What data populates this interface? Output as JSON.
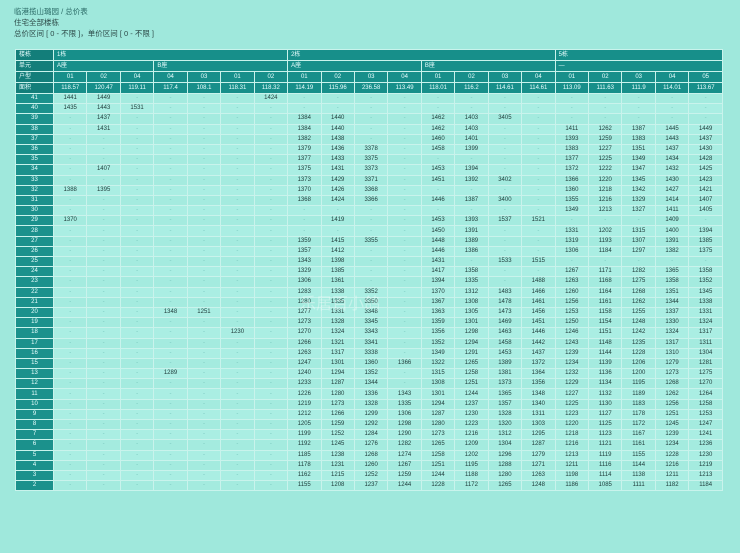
{
  "header": {
    "title": "临港揽山璐园 / 总价表",
    "scope": "住宅全部楼栋",
    "ranges": "总价区间 [ 0 - 不限 ]，单价区间 [ 0 - 不限 ]"
  },
  "watermark": "乐居百小鸽",
  "table": {
    "row_labels": {
      "building": "楼栋",
      "unit": "单元",
      "type": "户型",
      "area": "面积"
    },
    "buildings": [
      {
        "name": "1栋",
        "span": 7
      },
      {
        "name": "2栋",
        "span": 8
      },
      {
        "name": "5栋",
        "span": 5
      }
    ],
    "units": [
      {
        "name": "A座",
        "span": 3
      },
      {
        "name": "B座",
        "span": 4
      },
      {
        "name": "A座",
        "span": 4
      },
      {
        "name": "B座",
        "span": 4
      },
      {
        "name": "—",
        "span": 5
      }
    ],
    "types": [
      "01",
      "02",
      "04",
      "04",
      "03",
      "01",
      "02",
      "01",
      "02",
      "03",
      "04",
      "01",
      "02",
      "03",
      "04",
      "01",
      "02",
      "03",
      "04",
      "05"
    ],
    "areas": [
      "118.57",
      "120.47",
      "119.11",
      "117.4",
      "108.1",
      "118.31",
      "118.32",
      "114.19",
      "115.96",
      "236.58",
      "113.49",
      "118.01",
      "116.2",
      "114.61",
      "114.61",
      "113.09",
      "111.63",
      "111.9",
      "114.01",
      "113.67"
    ],
    "floors": [
      {
        "floor": "41",
        "prices": [
          "1441",
          "1449",
          "",
          "",
          "",
          "",
          "1424",
          "",
          "",
          "",
          "",
          "",
          "",
          "",
          "",
          "",
          "",
          "",
          "",
          ""
        ]
      },
      {
        "floor": "40",
        "prices": [
          "1435",
          "1443",
          "1531",
          "",
          "",
          "",
          "",
          "",
          "",
          "",
          "",
          "",
          "",
          "",
          "",
          "",
          "",
          "",
          "",
          ""
        ]
      },
      {
        "floor": "39",
        "prices": [
          "",
          "1437",
          "",
          "",
          "",
          "",
          "",
          "1384",
          "1440",
          "",
          "",
          "1462",
          "1403",
          "3405",
          "",
          "",
          "",
          "",
          "",
          ""
        ]
      },
      {
        "floor": "38",
        "prices": [
          "",
          "1431",
          "",
          "",
          "",
          "",
          "",
          "1384",
          "1440",
          "",
          "",
          "1462",
          "1403",
          "",
          "",
          "1411",
          "1262",
          "1387",
          "1445",
          "1449"
        ]
      },
      {
        "floor": "37",
        "prices": [
          "",
          "",
          "",
          "",
          "",
          "",
          "",
          "1382",
          "1438",
          "",
          "",
          "1460",
          "1401",
          "",
          "",
          "1393",
          "1259",
          "1383",
          "1443",
          "1437"
        ]
      },
      {
        "floor": "36",
        "prices": [
          "",
          "",
          "",
          "",
          "",
          "",
          "",
          "1379",
          "1436",
          "3378",
          "",
          "1458",
          "1399",
          "",
          "",
          "1383",
          "1227",
          "1351",
          "1437",
          "1430"
        ]
      },
      {
        "floor": "35",
        "prices": [
          "",
          "",
          "",
          "",
          "",
          "",
          "",
          "1377",
          "1433",
          "3375",
          "",
          "",
          "",
          "",
          "",
          "1377",
          "1225",
          "1349",
          "1434",
          "1428"
        ]
      },
      {
        "floor": "34",
        "prices": [
          "",
          "1407",
          "",
          "",
          "",
          "",
          "",
          "1375",
          "1431",
          "3373",
          "",
          "1453",
          "1394",
          "",
          "",
          "1372",
          "1222",
          "1347",
          "1432",
          "1425"
        ]
      },
      {
        "floor": "33",
        "prices": [
          "",
          "",
          "",
          "",
          "",
          "",
          "",
          "1373",
          "1429",
          "3371",
          "",
          "1451",
          "1392",
          "3402",
          "",
          "1366",
          "1220",
          "1345",
          "1430",
          "1423"
        ]
      },
      {
        "floor": "32",
        "prices": [
          "1388",
          "1395",
          "",
          "",
          "",
          "",
          "",
          "1370",
          "1426",
          "3368",
          "",
          "",
          "",
          "",
          "",
          "1360",
          "1218",
          "1342",
          "1427",
          "1421"
        ]
      },
      {
        "floor": "31",
        "prices": [
          "",
          "",
          "",
          "",
          "",
          "",
          "",
          "1368",
          "1424",
          "3366",
          "",
          "1446",
          "1387",
          "3400",
          "",
          "1355",
          "1216",
          "1329",
          "1414",
          "1407"
        ]
      },
      {
        "floor": "30",
        "prices": [
          "",
          "",
          "",
          "",
          "",
          "",
          "",
          "",
          "",
          "",
          "",
          "",
          "",
          "",
          "",
          "1349",
          "1213",
          "1327",
          "1411",
          "1405"
        ]
      },
      {
        "floor": "29",
        "prices": [
          "1370",
          "",
          "",
          "",
          "",
          "",
          "",
          "",
          "1419",
          "",
          "",
          "1453",
          "1393",
          "1537",
          "1521",
          "",
          "",
          "",
          "1409",
          ""
        ]
      },
      {
        "floor": "28",
        "prices": [
          "",
          "",
          "",
          "",
          "",
          "",
          "",
          "",
          "",
          "",
          "",
          "1450",
          "1391",
          "",
          "",
          "1331",
          "1202",
          "1315",
          "1400",
          "1394"
        ]
      },
      {
        "floor": "27",
        "prices": [
          "",
          "",
          "",
          "",
          "",
          "",
          "",
          "1359",
          "1415",
          "3355",
          "",
          "1448",
          "1389",
          "",
          "",
          "1319",
          "1193",
          "1307",
          "1391",
          "1385"
        ]
      },
      {
        "floor": "26",
        "prices": [
          "",
          "",
          "",
          "",
          "",
          "",
          "",
          "1357",
          "1412",
          "",
          "",
          "1446",
          "1386",
          "",
          "",
          "1306",
          "1184",
          "1297",
          "1382",
          "1375"
        ]
      },
      {
        "floor": "25",
        "prices": [
          "",
          "",
          "",
          "",
          "",
          "",
          "",
          "1343",
          "1398",
          "",
          "",
          "1431",
          "",
          "1533",
          "1515",
          "",
          "",
          "",
          "",
          ""
        ]
      },
      {
        "floor": "24",
        "prices": [
          "",
          "",
          "",
          "",
          "",
          "",
          "",
          "1329",
          "1385",
          "",
          "",
          "1417",
          "1358",
          "",
          "",
          "1267",
          "1171",
          "1282",
          "1365",
          "1358"
        ]
      },
      {
        "floor": "23",
        "prices": [
          "",
          "",
          "",
          "",
          "",
          "",
          "",
          "1306",
          "1361",
          "",
          "",
          "1394",
          "1335",
          "",
          "1488",
          "1263",
          "1168",
          "1275",
          "1358",
          "1352"
        ]
      },
      {
        "floor": "22",
        "prices": [
          "",
          "",
          "",
          "",
          "",
          "",
          "",
          "1283",
          "1338",
          "3352",
          "",
          "1370",
          "1312",
          "1483",
          "1466",
          "1260",
          "1164",
          "1268",
          "1351",
          "1345"
        ]
      },
      {
        "floor": "21",
        "prices": [
          "",
          "",
          "",
          "",
          "",
          "",
          "",
          "1280",
          "1335",
          "3350",
          "",
          "1367",
          "1308",
          "1478",
          "1461",
          "1256",
          "1161",
          "1262",
          "1344",
          "1338"
        ]
      },
      {
        "floor": "20",
        "prices": [
          "",
          "",
          "",
          "1348",
          "1251",
          "",
          "",
          "1277",
          "1331",
          "3348",
          "",
          "1363",
          "1305",
          "1473",
          "1456",
          "1253",
          "1158",
          "1255",
          "1337",
          "1331"
        ]
      },
      {
        "floor": "19",
        "prices": [
          "",
          "",
          "",
          "",
          "",
          "",
          "",
          "1273",
          "1328",
          "3345",
          "",
          "1359",
          "1301",
          "1469",
          "1451",
          "1250",
          "1154",
          "1248",
          "1330",
          "1324"
        ]
      },
      {
        "floor": "18",
        "prices": [
          "",
          "",
          "",
          "",
          "",
          "1230",
          "",
          "1270",
          "1324",
          "3343",
          "",
          "1356",
          "1298",
          "1463",
          "1446",
          "1246",
          "1151",
          "1242",
          "1324",
          "1317"
        ]
      },
      {
        "floor": "17",
        "prices": [
          "",
          "",
          "",
          "",
          "",
          "",
          "",
          "1266",
          "1321",
          "3341",
          "",
          "1352",
          "1294",
          "1458",
          "1442",
          "1243",
          "1148",
          "1235",
          "1317",
          "1311"
        ]
      },
      {
        "floor": "16",
        "prices": [
          "",
          "",
          "",
          "",
          "",
          "",
          "",
          "1263",
          "1317",
          "3338",
          "",
          "1349",
          "1291",
          "1453",
          "1437",
          "1239",
          "1144",
          "1228",
          "1310",
          "1304"
        ]
      },
      {
        "floor": "15",
        "prices": [
          "",
          "",
          "",
          "",
          "",
          "",
          "",
          "1247",
          "1301",
          "1360",
          "1366",
          "1322",
          "1265",
          "1389",
          "1372",
          "1234",
          "1139",
          "1206",
          "1279",
          "1281"
        ]
      },
      {
        "floor": "13",
        "prices": [
          "",
          "",
          "",
          "1289",
          "",
          "",
          "",
          "1240",
          "1294",
          "1352",
          "",
          "1315",
          "1258",
          "1381",
          "1364",
          "1232",
          "1136",
          "1200",
          "1273",
          "1275"
        ]
      },
      {
        "floor": "12",
        "prices": [
          "",
          "",
          "",
          "",
          "",
          "",
          "",
          "1233",
          "1287",
          "1344",
          "",
          "1308",
          "1251",
          "1373",
          "1356",
          "1229",
          "1134",
          "1195",
          "1268",
          "1270"
        ]
      },
      {
        "floor": "11",
        "prices": [
          "",
          "",
          "",
          "",
          "",
          "",
          "",
          "1226",
          "1280",
          "1336",
          "1343",
          "1301",
          "1244",
          "1365",
          "1348",
          "1227",
          "1132",
          "1189",
          "1262",
          "1264"
        ]
      },
      {
        "floor": "10",
        "prices": [
          "",
          "",
          "",
          "",
          "",
          "",
          "",
          "1219",
          "1273",
          "1328",
          "1335",
          "1294",
          "1237",
          "1357",
          "1340",
          "1225",
          "1130",
          "1183",
          "1256",
          "1258"
        ]
      },
      {
        "floor": "9",
        "prices": [
          "",
          "",
          "",
          "",
          "",
          "",
          "",
          "1212",
          "1266",
          "1299",
          "1306",
          "1287",
          "1230",
          "1328",
          "1311",
          "1223",
          "1127",
          "1178",
          "1251",
          "1253"
        ]
      },
      {
        "floor": "8",
        "prices": [
          "",
          "",
          "",
          "",
          "",
          "",
          "",
          "1205",
          "1259",
          "1292",
          "1298",
          "1280",
          "1223",
          "1320",
          "1303",
          "1220",
          "1125",
          "1172",
          "1245",
          "1247"
        ]
      },
      {
        "floor": "7",
        "prices": [
          "",
          "",
          "",
          "",
          "",
          "",
          "",
          "1199",
          "1252",
          "1284",
          "1290",
          "1273",
          "1216",
          "1312",
          "1295",
          "1218",
          "1123",
          "1167",
          "1239",
          "1241"
        ]
      },
      {
        "floor": "6",
        "prices": [
          "",
          "",
          "",
          "",
          "",
          "",
          "",
          "1192",
          "1245",
          "1276",
          "1282",
          "1265",
          "1209",
          "1304",
          "1287",
          "1216",
          "1121",
          "1161",
          "1234",
          "1236"
        ]
      },
      {
        "floor": "5",
        "prices": [
          "",
          "",
          "",
          "",
          "",
          "",
          "",
          "1185",
          "1238",
          "1268",
          "1274",
          "1258",
          "1202",
          "1296",
          "1279",
          "1213",
          "1119",
          "1155",
          "1228",
          "1230"
        ]
      },
      {
        "floor": "4",
        "prices": [
          "",
          "",
          "",
          "",
          "",
          "",
          "",
          "1178",
          "1231",
          "1260",
          "1267",
          "1251",
          "1195",
          "1288",
          "1271",
          "1211",
          "1116",
          "1144",
          "1216",
          "1219"
        ]
      },
      {
        "floor": "3",
        "prices": [
          "",
          "",
          "",
          "",
          "",
          "",
          "",
          "1162",
          "1215",
          "1252",
          "1259",
          "1244",
          "1188",
          "1280",
          "1263",
          "1198",
          "1114",
          "1138",
          "1211",
          "1213"
        ]
      },
      {
        "floor": "2",
        "prices": [
          "",
          "",
          "",
          "",
          "",
          "",
          "",
          "1155",
          "1208",
          "1237",
          "1244",
          "1228",
          "1172",
          "1265",
          "1248",
          "1186",
          "1085",
          "1111",
          "1182",
          "1184"
        ]
      }
    ]
  }
}
